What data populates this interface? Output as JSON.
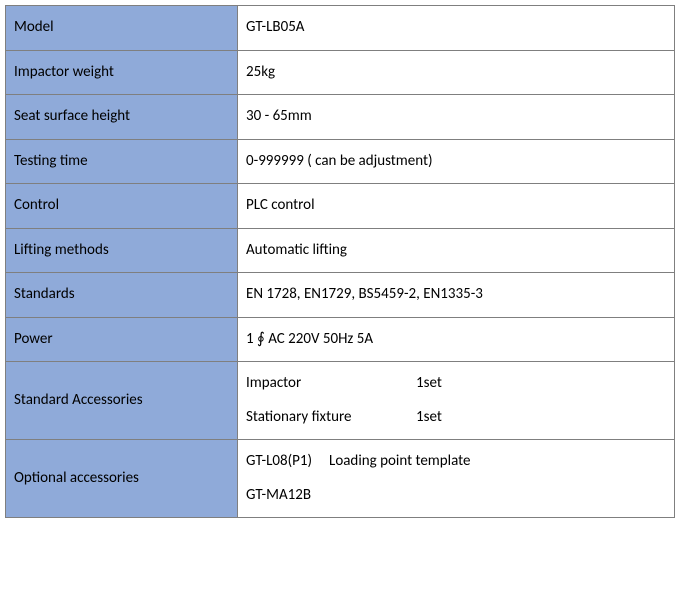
{
  "colors": {
    "label_bg": "#8faad9",
    "value_bg": "#ffffff",
    "border": "#7f7f7f",
    "text": "#000000"
  },
  "rows": {
    "model": {
      "label": "Model",
      "value": "GT-LB05A"
    },
    "impactor_wt": {
      "label": "Impactor weight",
      "value": "25kg"
    },
    "seat_h": {
      "label": "Seat surface height",
      "value": "30 - 65mm"
    },
    "test_time": {
      "label": "Testing time",
      "value": "0-999999 ( can be adjustment)"
    },
    "control": {
      "label": "Control",
      "value": "PLC control"
    },
    "lifting": {
      "label": "Lifting methods",
      "value": "Automatic lifting"
    },
    "standards": {
      "label": "Standards",
      "value": "EN 1728, EN1729, BS5459-2, EN1335-3"
    },
    "power": {
      "label": "Power",
      "value": "1 ∮  AC 220V 50Hz 5A"
    }
  },
  "std_acc": {
    "label": "Standard Accessories",
    "items": [
      {
        "name": "Impactor",
        "qty": "1set"
      },
      {
        "name": "Stationary fixture",
        "qty": "1set"
      }
    ]
  },
  "opt_acc": {
    "label": "Optional accessories",
    "lines": [
      "GT-L08(P1)     Loading point template",
      "GT-MA12B"
    ]
  }
}
